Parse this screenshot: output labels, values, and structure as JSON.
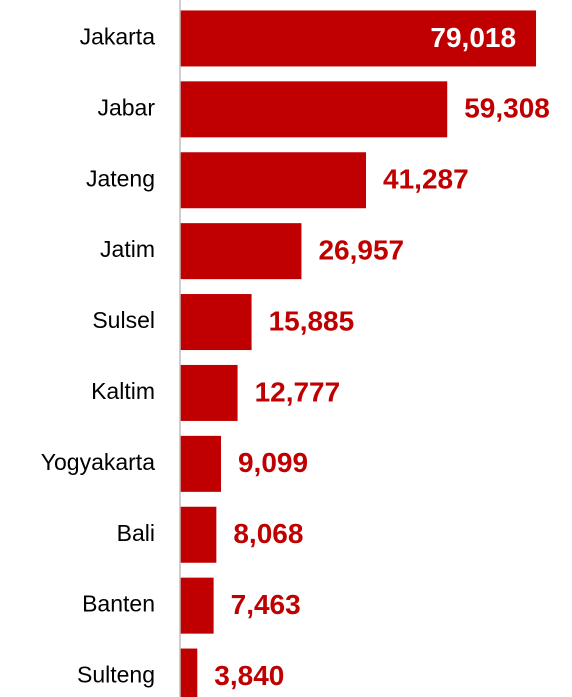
{
  "chart_data": {
    "type": "bar",
    "orientation": "horizontal",
    "categories": [
      "Jakarta",
      "Jabar",
      "Jateng",
      "Jatim",
      "Sulsel",
      "Kaltim",
      "Yogyakarta",
      "Bali",
      "Banten",
      "Sulteng"
    ],
    "values": [
      79018,
      59308,
      41287,
      26957,
      15885,
      12777,
      9099,
      8068,
      7463,
      3840
    ],
    "value_labels": [
      "79,018",
      "59,308",
      "41,287",
      "26,957",
      "15,885",
      "12,777",
      "9,099",
      "8,068",
      "7,463",
      "3,840"
    ],
    "color": "#c00000",
    "xlim": [
      0,
      87000
    ]
  }
}
